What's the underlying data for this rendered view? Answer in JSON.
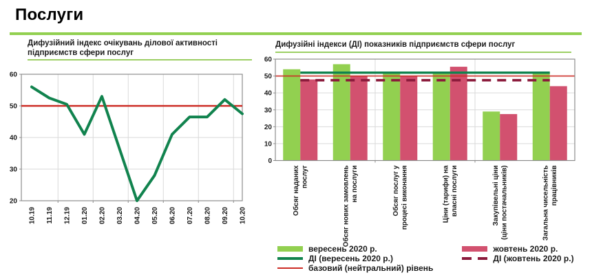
{
  "page": {
    "title": "Послуги"
  },
  "colors": {
    "light_green": "#92D050",
    "divider_green": "#92D050",
    "underline_green": "#9CCF63",
    "dark_green": "#11834E",
    "crimson": "#D2516F",
    "maroon": "#8B1A3B",
    "neutral_red": "#CC2B24",
    "grid": "#D9D9D9",
    "border": "#8C8C8C",
    "text": "#1a1a1a"
  },
  "legend": {
    "september_bars": "вересень 2020 р.",
    "october_bars": "жовтень 2020 р.",
    "di_september": "ДІ (вересень 2020 р.)",
    "di_october": "ДІ (жовтень 2020 р.)",
    "neutral": "базовий (нейтральний) рівень"
  },
  "chart_data": [
    {
      "id": "expectations_line",
      "type": "line",
      "title": "Дифузійний індекс очікувань ділової активності підприємств сфери послуг",
      "categories": [
        "10.19",
        "11.19",
        "12.19",
        "01.20",
        "02.20",
        "03.20",
        "04.20",
        "05.20",
        "06.20",
        "07.20",
        "08.20",
        "09.20",
        "10.20"
      ],
      "values": [
        56,
        52.5,
        50.5,
        41,
        53,
        36.5,
        20,
        28,
        41,
        46.5,
        46.5,
        52,
        47.5
      ],
      "neutral_level": 50,
      "ylim": [
        20,
        60
      ],
      "yticks": [
        20,
        30,
        40,
        50,
        60
      ],
      "grid": true,
      "legend_position": "none"
    },
    {
      "id": "di_indicators_bars",
      "type": "bar",
      "title": "Дифузійні індекси (ДІ) показників підприємств сфери послуг",
      "categories": [
        [
          "Обсяг наданих",
          "послуг"
        ],
        [
          "Обсяг нових замовлень",
          "на послуги"
        ],
        [
          "Обсяг послуг у",
          "процесі виконання"
        ],
        [
          "Ціни (тарифи)  на",
          "власні послуги"
        ],
        [
          "Закупівельні ціни",
          "(ціни постачальників)"
        ],
        [
          "Загальна  чисельність",
          "працівників"
        ]
      ],
      "series": [
        {
          "name": "вересень 2020 р.",
          "color": "#92D050",
          "values": [
            54,
            57,
            52,
            52,
            29,
            52
          ]
        },
        {
          "name": "жовтень 2020 р.",
          "color": "#D2516F",
          "values": [
            48,
            50,
            50,
            55.5,
            27.5,
            44
          ]
        }
      ],
      "reference_lines": [
        {
          "name": "ДІ (вересень 2020 р.)",
          "value": 52,
          "style": "solid",
          "color": "#11834E"
        },
        {
          "name": "ДІ (жовтень 2020 р.)",
          "value": 47.5,
          "style": "dashed",
          "color": "#8B1A3B"
        },
        {
          "name": "базовий (нейтральний) рівень",
          "value": 50,
          "style": "thin",
          "color": "#CC2B24"
        }
      ],
      "ylim": [
        0,
        60
      ],
      "yticks": [
        0,
        10,
        20,
        30,
        40,
        50,
        60
      ],
      "grid": true,
      "legend_position": "bottom"
    }
  ]
}
